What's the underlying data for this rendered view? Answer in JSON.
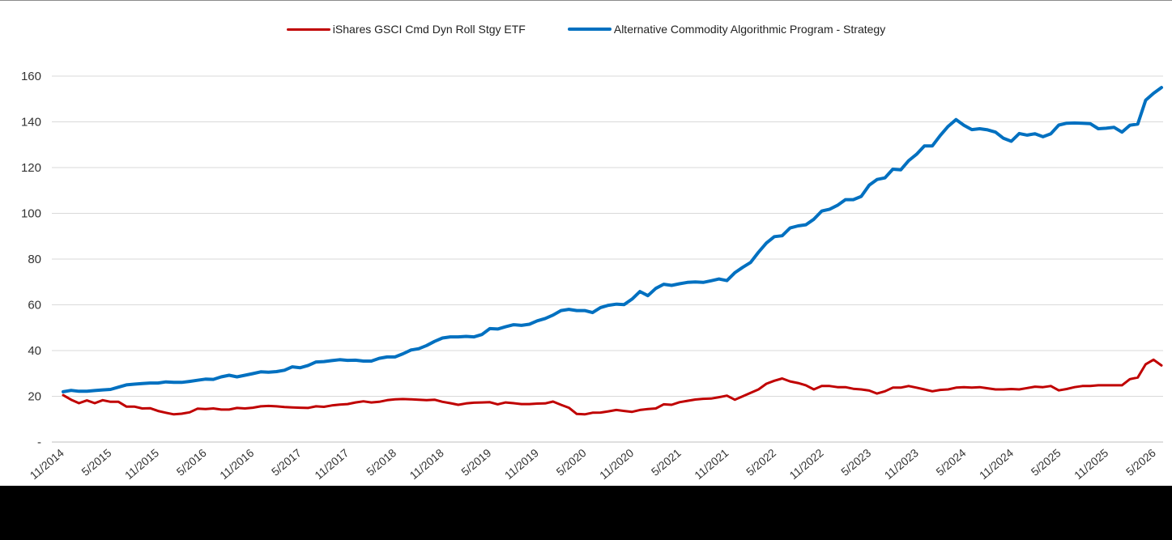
{
  "colors": {
    "etf": "#c00000",
    "strategy": "#0070c0",
    "grid": "#d9d9d9",
    "axis": "#bfbfbf"
  },
  "legend": {
    "etf_label": "iShares GSCI Cmd Dyn Roll Stgy ETF",
    "strategy_label": "Alternative Commodity Algorithmic Program - Strategy"
  },
  "chart_data": {
    "type": "line",
    "title": "",
    "xlabel": "",
    "ylabel": "",
    "ylim": [
      0,
      160
    ],
    "y_ticks": [
      0,
      20,
      40,
      60,
      80,
      100,
      120,
      140,
      160
    ],
    "y_tick_labels": [
      "-",
      "20",
      "40",
      "60",
      "80",
      "100",
      "120",
      "140",
      "160"
    ],
    "grid": true,
    "legend_position": "top",
    "x_tick_labels": [
      "11/2014",
      "5/2015",
      "11/2015",
      "5/2016",
      "11/2016",
      "5/2017",
      "11/2017",
      "5/2018",
      "11/2018",
      "5/2019",
      "11/2019",
      "5/2020",
      "11/2020",
      "5/2021",
      "11/2021",
      "5/2022",
      "11/2022",
      "5/2023",
      "11/2023",
      "5/2024",
      "11/2024",
      "5/2025",
      "11/2025",
      "5/2026"
    ],
    "x_start": "11/2014",
    "x_end": "5/2026",
    "series": [
      {
        "name": "iShares GSCI Cmd Dyn Roll Stgy ETF",
        "color": "#c00000",
        "values": [
          20.5,
          18.5,
          17.0,
          18.2,
          17.0,
          18.3,
          17.6,
          17.6,
          15.5,
          15.5,
          14.7,
          14.8,
          13.6,
          12.8,
          12.1,
          12.4,
          13.0,
          14.6,
          14.4,
          14.7,
          14.2,
          14.2,
          14.9,
          14.7,
          15.0,
          15.6,
          15.8,
          15.6,
          15.3,
          15.1,
          15.0,
          14.9,
          15.6,
          15.4,
          16.0,
          16.4,
          16.6,
          17.3,
          17.8,
          17.3,
          17.6,
          18.3,
          18.7,
          18.8,
          18.7,
          18.5,
          18.3,
          18.5,
          17.6,
          17.0,
          16.3,
          16.9,
          17.2,
          17.3,
          17.4,
          16.5,
          17.3,
          17.0,
          16.6,
          16.6,
          16.8,
          16.9,
          17.7,
          16.3,
          15.0,
          12.3,
          12.1,
          12.8,
          12.9,
          13.4,
          14.0,
          13.6,
          13.2,
          14.0,
          14.4,
          14.7,
          16.5,
          16.3,
          17.4,
          18.0,
          18.6,
          18.9,
          19.0,
          19.6,
          20.3,
          18.5,
          20.0,
          21.5,
          23.0,
          25.5,
          26.8,
          27.8,
          26.5,
          25.8,
          24.8,
          23.0,
          24.5,
          24.5,
          24.0,
          24.0,
          23.3,
          23.0,
          22.5,
          21.2,
          22.2,
          23.8,
          23.8,
          24.5,
          23.8,
          23.0,
          22.2,
          22.8,
          23.0,
          23.8,
          24.0,
          23.8,
          24.0,
          23.5,
          23.0,
          23.0,
          23.2,
          23.0,
          23.6,
          24.2,
          24.0,
          24.5,
          22.6,
          23.2,
          24.0,
          24.5,
          24.5,
          24.8,
          24.8,
          24.8,
          24.8,
          27.5,
          28.2,
          34.0,
          36.0,
          33.5
        ]
      },
      {
        "name": "Alternative Commodity Algorithmic Program - Strategy",
        "color": "#0070c0",
        "values": [
          22.0,
          22.6,
          22.2,
          22.2,
          22.5,
          22.8,
          23.0,
          24.0,
          25.0,
          25.3,
          25.6,
          25.8,
          25.8,
          26.3,
          26.1,
          26.1,
          26.5,
          27.0,
          27.5,
          27.4,
          28.5,
          29.2,
          28.5,
          29.2,
          29.9,
          30.7,
          30.5,
          30.8,
          31.4,
          32.9,
          32.5,
          33.5,
          35.0,
          35.2,
          35.6,
          36.0,
          35.7,
          35.8,
          35.4,
          35.4,
          36.6,
          37.2,
          37.2,
          38.6,
          40.2,
          40.8,
          42.2,
          44.0,
          45.5,
          46.0,
          46.0,
          46.2,
          46.0,
          47.0,
          49.6,
          49.4,
          50.4,
          51.3,
          51.0,
          51.5,
          53.0,
          54.0,
          55.5,
          57.5,
          58.0,
          57.5,
          57.5,
          56.6,
          58.8,
          59.8,
          60.3,
          60.1,
          62.5,
          65.8,
          64.0,
          67.2,
          69.0,
          68.5,
          69.2,
          69.8,
          70.0,
          69.8,
          70.5,
          71.3,
          70.6,
          74.0,
          76.4,
          78.5,
          83.0,
          87.0,
          89.8,
          90.2,
          93.6,
          94.5,
          95.0,
          97.4,
          101.0,
          101.8,
          103.5,
          106.0,
          106.0,
          107.4,
          112.3,
          114.8,
          115.5,
          119.3,
          119.0,
          123.0,
          125.8,
          129.5,
          129.5,
          134.0,
          138.0,
          141.0,
          138.5,
          136.6,
          137.0,
          136.5,
          135.5,
          132.8,
          131.5,
          134.9,
          134.2,
          134.8,
          133.5,
          134.8,
          138.6,
          139.4,
          139.5,
          139.4,
          139.2,
          137.0,
          137.2,
          137.6,
          135.5,
          138.5,
          139.0,
          149.5,
          152.5,
          155.0
        ]
      }
    ]
  }
}
